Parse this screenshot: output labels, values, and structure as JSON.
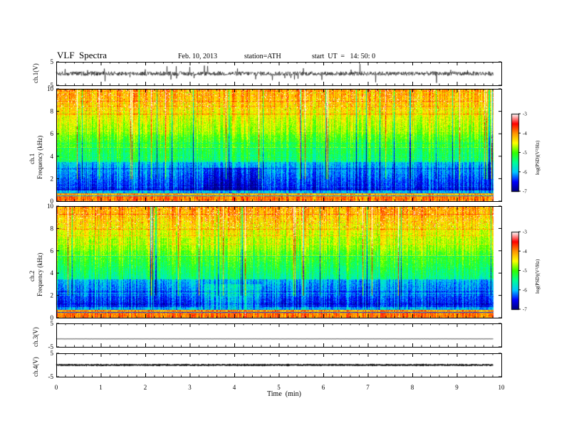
{
  "header": {
    "title": "VLF  Spectra",
    "date": "Feb. 10, 2013",
    "station": "station=ATH",
    "start": "start  UT  =   14: 50: 0"
  },
  "chart_data": [
    {
      "type": "line",
      "panel": "ch1-waveform",
      "ylabel": "ch.1(V)",
      "ylim": [
        -5,
        5
      ],
      "ytick_labels": [
        "5",
        "-5"
      ],
      "xlim": [
        0,
        10
      ],
      "series": [
        {
          "level": 0,
          "noise": "high-amplitude broadband"
        }
      ]
    },
    {
      "type": "heatmap",
      "panel": "ch1-spectrogram",
      "ylabel": [
        "ch.1",
        "Frequency  (kHz)"
      ],
      "ylim": [
        0,
        10
      ],
      "ytick_labels": [
        "0",
        "2",
        "4",
        "6",
        "8",
        "10"
      ],
      "xlim": [
        0,
        10
      ],
      "colorbar": {
        "label": "log(PSD)(V²/Hz)",
        "range": [
          -7,
          -3
        ],
        "tick_labels": [
          "-3",
          "-4",
          "-5",
          "-6",
          "-7"
        ]
      }
    },
    {
      "type": "heatmap",
      "panel": "ch2-spectrogram",
      "ylabel": [
        "ch.2",
        "Frequency  (kHz)"
      ],
      "ylim": [
        0,
        10
      ],
      "ytick_labels": [
        "0",
        "2",
        "4",
        "6",
        "8",
        "10"
      ],
      "xlim": [
        0,
        10
      ],
      "colorbar": {
        "label": "log(PSD)(V²/Hz)",
        "range": [
          -7,
          -3
        ],
        "tick_labels": [
          "-3",
          "-4",
          "-5",
          "-6",
          "-7"
        ]
      }
    },
    {
      "type": "line",
      "panel": "ch3-waveform",
      "ylabel": "ch.3(V)",
      "ylim": [
        -5,
        5
      ],
      "ytick_labels": [
        "5",
        "-5"
      ],
      "xlim": [
        0,
        10
      ],
      "series": [
        {
          "level": -1.6,
          "noise": "very low"
        }
      ]
    },
    {
      "type": "line",
      "panel": "ch4-waveform",
      "ylabel": "ch.4(V)",
      "ylim": [
        -5,
        5
      ],
      "ytick_labels": [
        "5",
        "-5"
      ],
      "xlim": [
        0,
        10
      ],
      "series": [
        {
          "level": 0,
          "noise": "low (thick trace)"
        }
      ]
    }
  ],
  "xaxis": {
    "label": "Time  (min)",
    "ticks": [
      0,
      1,
      2,
      3,
      4,
      5,
      6,
      7,
      8,
      9,
      10
    ],
    "tick_labels": [
      "0",
      "1",
      "2",
      "3",
      "4",
      "5",
      "6",
      "7",
      "8",
      "9",
      "10"
    ],
    "data_end": 9.82
  },
  "colors": {
    "axis": "#000000",
    "colormap": [
      "#00007a",
      "#0000ff",
      "#00c8ff",
      "#00ff96",
      "#32ff00",
      "#ffff00",
      "#ff9600",
      "#ff0000",
      "#ffffff"
    ]
  }
}
